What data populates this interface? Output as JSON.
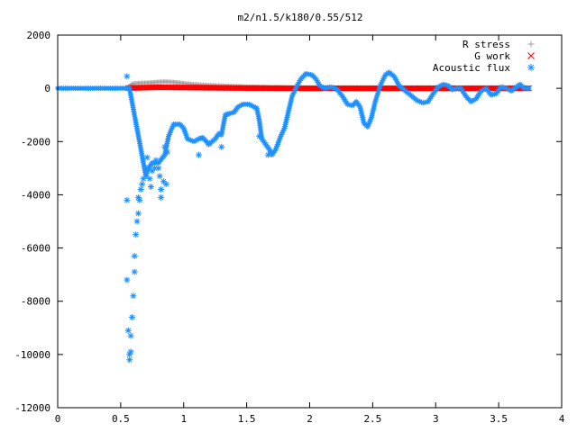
{
  "chart_data": {
    "type": "scatter",
    "title": "m2/n1.5/k180/0.55/512",
    "xlabel": "",
    "ylabel": "",
    "xlim": [
      0,
      4
    ],
    "ylim": [
      -12000,
      2000
    ],
    "x_ticks": [
      0,
      0.5,
      1,
      1.5,
      2,
      2.5,
      3,
      3.5,
      4
    ],
    "x_tick_labels": [
      "0",
      "0.5",
      "1",
      "1.5",
      "2",
      "2.5",
      "3",
      "3.5",
      "4"
    ],
    "y_ticks": [
      -12000,
      -10000,
      -8000,
      -6000,
      -4000,
      -2000,
      0,
      2000
    ],
    "y_tick_labels": [
      "-12000",
      "-10000",
      "-8000",
      "-6000",
      "-4000",
      "-2000",
      "0",
      "2000"
    ],
    "grid": false,
    "legend_position": "top-right",
    "series": [
      {
        "name": "R stress",
        "marker": "+",
        "color": "#a0a0a0",
        "x": [
          0.56,
          0.6,
          0.65,
          0.7,
          0.75,
          0.8,
          0.85,
          0.9,
          0.95,
          1.0,
          1.1,
          1.2,
          1.3,
          1.4,
          1.5,
          1.7,
          2.0,
          2.5,
          3.0,
          3.5,
          3.74
        ],
        "y": [
          60,
          180,
          200,
          210,
          220,
          240,
          250,
          240,
          220,
          190,
          150,
          120,
          100,
          80,
          60,
          40,
          20,
          10,
          5,
          0,
          0
        ]
      },
      {
        "name": "G work",
        "marker": "x",
        "color": "#ff0000",
        "x": [
          0.56,
          0.8,
          1.0,
          1.5,
          2.0,
          2.5,
          3.0,
          3.5,
          3.74
        ],
        "y": [
          10,
          40,
          30,
          10,
          0,
          0,
          0,
          0,
          0
        ]
      },
      {
        "name": "Acoustic flux",
        "marker": "*",
        "color": "#1e90ff",
        "line": [
          [
            0.0,
            0
          ],
          [
            0.54,
            0
          ],
          [
            0.55,
            0
          ],
          [
            0.57,
            0
          ],
          [
            0.7,
            -3300
          ],
          [
            0.72,
            -3000
          ],
          [
            0.75,
            -2800
          ],
          [
            0.8,
            -2800
          ],
          [
            0.85,
            -2500
          ],
          [
            0.88,
            -1800
          ],
          [
            0.92,
            -1350
          ],
          [
            0.97,
            -1350
          ],
          [
            1.0,
            -1500
          ],
          [
            1.03,
            -1900
          ],
          [
            1.08,
            -2000
          ],
          [
            1.12,
            -1900
          ],
          [
            1.15,
            -1850
          ],
          [
            1.2,
            -2100
          ],
          [
            1.25,
            -1900
          ],
          [
            1.28,
            -1700
          ],
          [
            1.3,
            -1750
          ],
          [
            1.33,
            -1000
          ],
          [
            1.36,
            -950
          ],
          [
            1.4,
            -900
          ],
          [
            1.43,
            -700
          ],
          [
            1.47,
            -600
          ],
          [
            1.52,
            -600
          ],
          [
            1.56,
            -700
          ],
          [
            1.58,
            -750
          ],
          [
            1.6,
            -1200
          ],
          [
            1.62,
            -1900
          ],
          [
            1.65,
            -2100
          ],
          [
            1.68,
            -2300
          ],
          [
            1.7,
            -2500
          ],
          [
            1.73,
            -2300
          ],
          [
            1.77,
            -1800
          ],
          [
            1.8,
            -1500
          ],
          [
            1.83,
            -900
          ],
          [
            1.86,
            -300
          ],
          [
            1.9,
            100
          ],
          [
            1.93,
            350
          ],
          [
            1.97,
            550
          ],
          [
            2.02,
            500
          ],
          [
            2.05,
            350
          ],
          [
            2.08,
            100
          ],
          [
            2.12,
            0
          ],
          [
            2.17,
            50
          ],
          [
            2.22,
            -50
          ],
          [
            2.26,
            -300
          ],
          [
            2.3,
            -600
          ],
          [
            2.34,
            -650
          ],
          [
            2.37,
            -500
          ],
          [
            2.4,
            -700
          ],
          [
            2.43,
            -1300
          ],
          [
            2.46,
            -1450
          ],
          [
            2.49,
            -1100
          ],
          [
            2.52,
            -500
          ],
          [
            2.56,
            100
          ],
          [
            2.6,
            500
          ],
          [
            2.63,
            600
          ],
          [
            2.67,
            450
          ],
          [
            2.71,
            100
          ],
          [
            2.76,
            -100
          ],
          [
            2.8,
            -250
          ],
          [
            2.85,
            -450
          ],
          [
            2.9,
            -550
          ],
          [
            2.94,
            -500
          ],
          [
            2.98,
            -200
          ],
          [
            3.02,
            50
          ],
          [
            3.06,
            150
          ],
          [
            3.1,
            100
          ],
          [
            3.13,
            -50
          ],
          [
            3.17,
            0
          ],
          [
            3.2,
            0
          ],
          [
            3.24,
            -300
          ],
          [
            3.28,
            -500
          ],
          [
            3.32,
            -400
          ],
          [
            3.36,
            -100
          ],
          [
            3.4,
            0
          ],
          [
            3.44,
            -250
          ],
          [
            3.48,
            -200
          ],
          [
            3.52,
            50
          ],
          [
            3.56,
            0
          ],
          [
            3.6,
            -100
          ],
          [
            3.64,
            50
          ],
          [
            3.67,
            150
          ],
          [
            3.7,
            0
          ],
          [
            3.74,
            0
          ]
        ],
        "scatter": [
          [
            0.55,
            450
          ],
          [
            0.55,
            -4200
          ],
          [
            0.55,
            -7200
          ],
          [
            0.56,
            -9100
          ],
          [
            0.57,
            -10000
          ],
          [
            0.57,
            -10200
          ],
          [
            0.58,
            -9900
          ],
          [
            0.58,
            -9300
          ],
          [
            0.59,
            -8600
          ],
          [
            0.6,
            -7800
          ],
          [
            0.61,
            -6900
          ],
          [
            0.61,
            -6300
          ],
          [
            0.62,
            -5500
          ],
          [
            0.63,
            -5000
          ],
          [
            0.64,
            -4700
          ],
          [
            0.64,
            -4100
          ],
          [
            0.65,
            -4200
          ],
          [
            0.66,
            -3800
          ],
          [
            0.67,
            -3600
          ],
          [
            0.68,
            -3400
          ],
          [
            0.7,
            -3000
          ],
          [
            0.71,
            -2600
          ],
          [
            0.73,
            -3400
          ],
          [
            0.74,
            -3700
          ],
          [
            0.75,
            -3100
          ],
          [
            0.77,
            -3000
          ],
          [
            0.78,
            -2700
          ],
          [
            0.8,
            -3000
          ],
          [
            0.81,
            -3300
          ],
          [
            0.82,
            -4100
          ],
          [
            0.82,
            -3800
          ],
          [
            0.84,
            -3500
          ],
          [
            0.85,
            -2200
          ],
          [
            0.86,
            -3600
          ],
          [
            0.87,
            -2400
          ],
          [
            1.12,
            -2500
          ],
          [
            1.2,
            -2100
          ],
          [
            1.3,
            -2200
          ],
          [
            1.6,
            -1800
          ],
          [
            1.67,
            -2500
          ]
        ]
      }
    ]
  }
}
